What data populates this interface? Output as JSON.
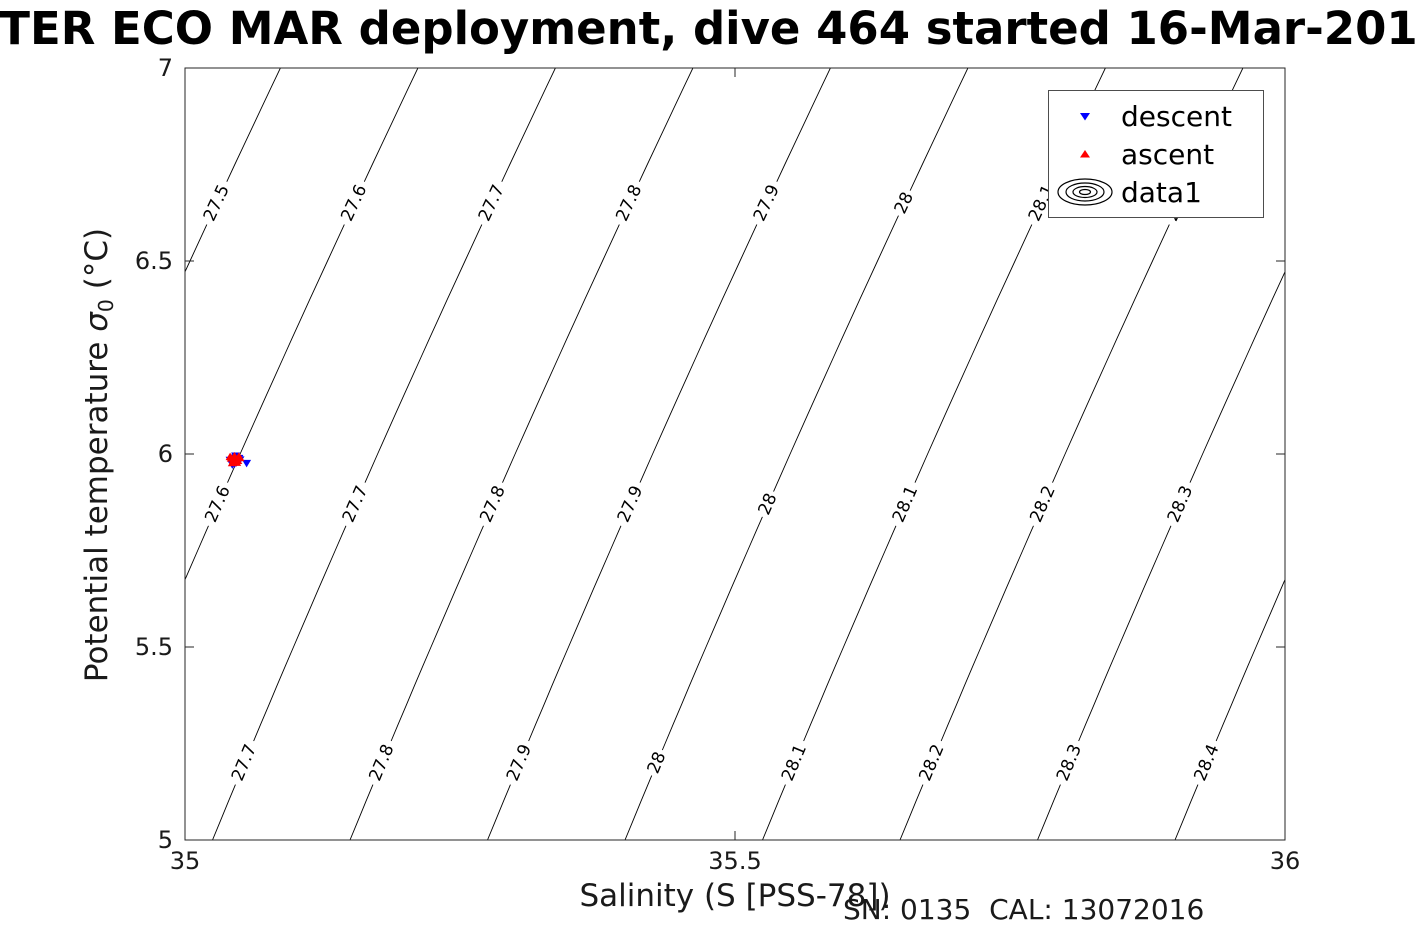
{
  "title": "TER ECO MAR deployment, dive 464 started 16-Mar-201",
  "footer": "SN: 0135  CAL: 13072016",
  "axes": {
    "xlabel": "Salinity (S [PSS-78])",
    "ylabel_prefix": "Potential temperature ",
    "ylabel_sigma": "σ",
    "ylabel_sub": "0",
    "ylabel_suffix": " (°C)",
    "xlim": [
      35,
      36
    ],
    "ylim": [
      5,
      7
    ],
    "xticks": [
      {
        "value": 35,
        "label": "35"
      },
      {
        "value": 35.5,
        "label": "35.5"
      },
      {
        "value": 36,
        "label": "36"
      }
    ],
    "yticks": [
      {
        "value": 5,
        "label": "5"
      },
      {
        "value": 5.5,
        "label": "5.5"
      },
      {
        "value": 6,
        "label": "6"
      },
      {
        "value": 6.5,
        "label": "6.5"
      },
      {
        "value": 7,
        "label": "7"
      }
    ]
  },
  "legend": {
    "items": [
      {
        "label": "descent",
        "marker": "triangle-down",
        "color": "#0000ff"
      },
      {
        "label": "ascent",
        "marker": "triangle-up",
        "color": "#ff0000"
      },
      {
        "label": "data1",
        "marker": "contour-rings",
        "color": "#000000"
      }
    ]
  },
  "chart_data": {
    "type": "scatter",
    "title": "TER ECO MAR deployment, dive 464 started 16-Mar-201",
    "xlabel": "Salinity (S [PSS-78])",
    "ylabel": "Potential temperature σ0 (°C)",
    "xlim": [
      35,
      36
    ],
    "ylim": [
      5,
      7
    ],
    "grid": false,
    "legend_position": "top-right",
    "contours": {
      "description": "Isopycnal contour lines of potential density anomaly sigma-0 (kg/m^3), diagonal lines sloping up to the right, labeled inline",
      "levels": [
        27.5,
        27.6,
        27.7,
        27.8,
        27.9,
        28,
        28.1,
        28.2,
        28.3,
        28.4
      ],
      "sigma_fit": {
        "base": 27.68,
        "dS": 0.8,
        "dT1": 0.1155,
        "dT2": 0.0046,
        "Sref": 35,
        "Tref": 5
      },
      "label_T_positions": [
        6.65,
        5.87,
        5.2
      ],
      "line_color": "#000000"
    },
    "series": [
      {
        "name": "descent",
        "marker": "triangle-down",
        "color": "#0000ff",
        "points": [
          [
            35.041,
            5.985
          ],
          [
            35.044,
            5.991
          ],
          [
            35.047,
            5.979
          ],
          [
            35.05,
            5.986
          ],
          [
            35.043,
            5.973
          ],
          [
            35.046,
            5.996
          ],
          [
            35.049,
            5.99
          ],
          [
            35.042,
            5.98
          ],
          [
            35.045,
            5.975
          ],
          [
            35.048,
            5.984
          ],
          [
            35.056,
            5.977
          ]
        ]
      },
      {
        "name": "ascent",
        "marker": "triangle-up",
        "color": "#ff0000",
        "points": [
          [
            35.042,
            5.988
          ],
          [
            35.045,
            5.994
          ],
          [
            35.048,
            5.982
          ],
          [
            35.043,
            5.976
          ],
          [
            35.046,
            5.987
          ],
          [
            35.049,
            5.993
          ],
          [
            35.044,
            5.983
          ],
          [
            35.047,
            5.977
          ],
          [
            35.05,
            5.989
          ],
          [
            35.041,
            5.992
          ]
        ]
      }
    ]
  }
}
